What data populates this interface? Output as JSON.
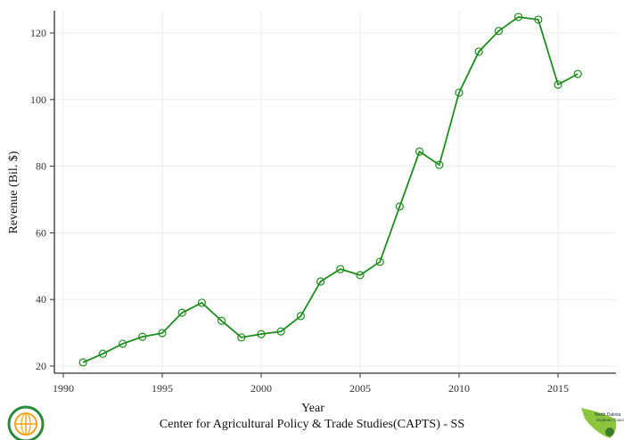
{
  "chart_data": {
    "type": "line",
    "xlabel": "Year",
    "ylabel": "Revenue (Bil. $)",
    "xlim": [
      1990,
      2018.5
    ],
    "ylim": [
      20,
      126.5
    ],
    "xticks": [
      1990,
      1995,
      2000,
      2005,
      2010,
      2015
    ],
    "yticks": [
      20,
      40,
      60,
      80,
      100,
      120
    ],
    "grid": true,
    "line_color": "#1e8c1e",
    "marker": "hollow-circle",
    "x": [
      1991,
      1992,
      1993,
      1994,
      1995,
      1996,
      1997,
      1998,
      1999,
      2000,
      2001,
      2002,
      2003,
      2004,
      2005,
      2006,
      2007,
      2008,
      2009,
      2010,
      2011,
      2012,
      2013,
      2014,
      2015,
      2016
    ],
    "values": [
      21.1,
      23.7,
      26.7,
      28.8,
      29.9,
      36.0,
      39.0,
      33.6,
      28.6,
      29.6,
      30.4,
      35.0,
      45.4,
      49.1,
      47.3,
      51.3,
      67.9,
      84.4,
      80.4,
      102.1,
      114.4,
      120.6,
      124.8,
      124.0,
      104.5,
      107.7
    ]
  },
  "footer": {
    "caption": "Center for Agricultural Policy & Trade Studies(CAPTS) - SS",
    "left_logo": "CAPTS",
    "right_logo": "North Dakota Soybean Council"
  }
}
